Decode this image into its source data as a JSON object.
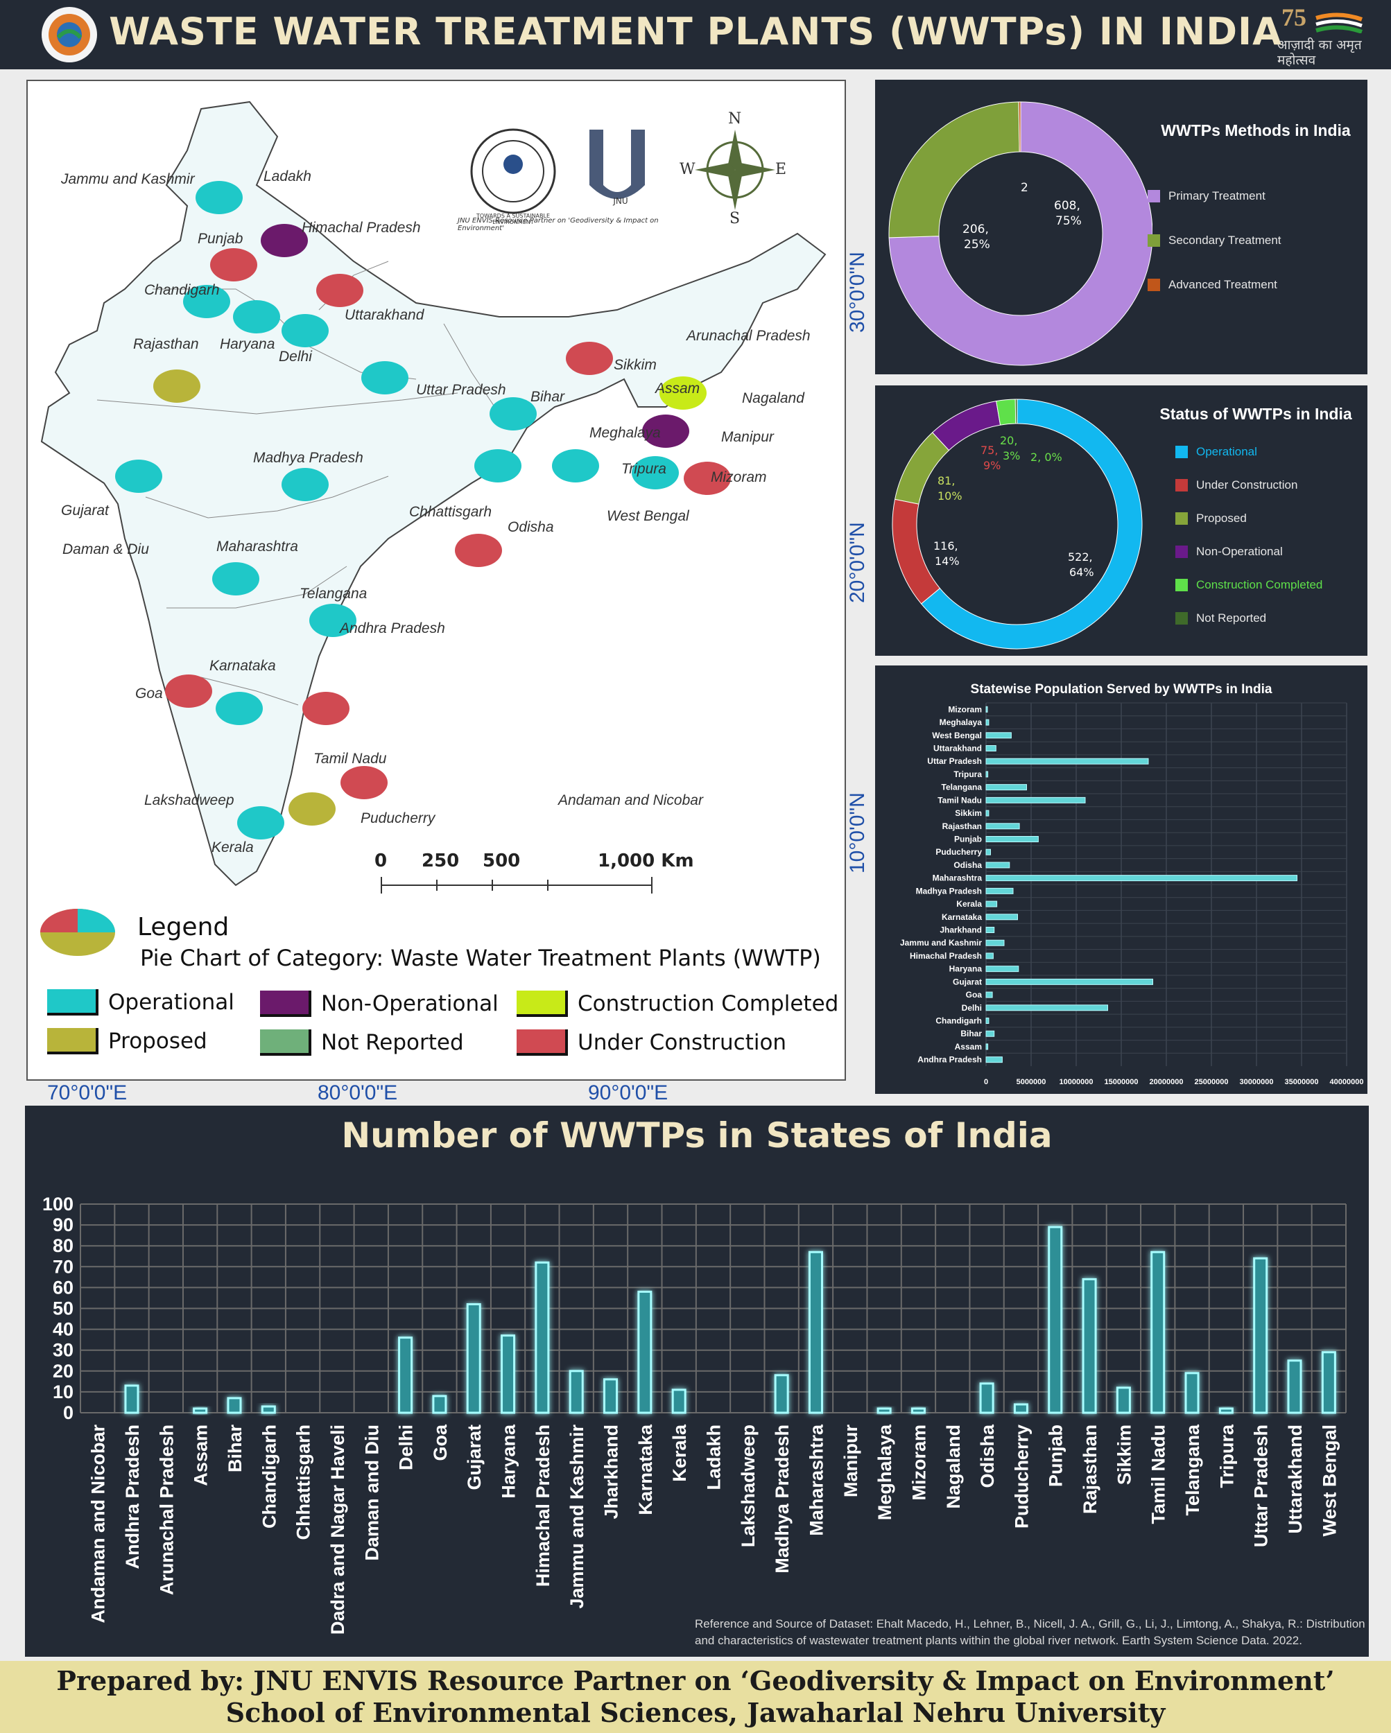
{
  "header": {
    "title": "WASTE WATER TREATMENT PLANTS (WWTPs) IN INDIA",
    "logo_right_text": "आज़ादी का अमृत महोत्सव",
    "logo_right_number": "75"
  },
  "map": {
    "org_text": "JNU ENVIS Resource Partner on 'Geodiversity & Impact on Environment'",
    "seal_text": "TOWARDS A SUSTAINABLE ENVIRONMENT",
    "jnu_text": "JNU",
    "compass": {
      "n": "N",
      "s": "S",
      "e": "E",
      "w": "W"
    },
    "scale": {
      "t0": "0",
      "t1": "250",
      "t2": "500",
      "t3": "1,000 Km"
    },
    "legend_title": "Legend",
    "legend_subtitle": "Pie Chart of Category: Waste Water Treatment Plants (WWTP)",
    "legend": [
      {
        "label": "Operational",
        "color": "#1fc8c8"
      },
      {
        "label": "Non-Operational",
        "color": "#6b1a6b"
      },
      {
        "label": "Construction Completed",
        "color": "#c8ea18"
      },
      {
        "label": "Proposed",
        "color": "#b8b43a"
      },
      {
        "label": "Not Reported",
        "color": "#6fb07a"
      },
      {
        "label": "Under Construction",
        "color": "#d04a52"
      }
    ],
    "labels": [
      "Jammu and Kashmir",
      "Ladakh",
      "Himachal Pradesh",
      "Punjab",
      "Chandigarh",
      "Uttarakhand",
      "Rajasthan",
      "Haryana",
      "Delhi",
      "Uttar Pradesh",
      "Bihar",
      "Sikkim",
      "Arunachal Pradesh",
      "Assam",
      "Nagaland",
      "Meghalaya",
      "Manipur",
      "Tripura",
      "Mizoram",
      "West Bengal",
      "Madhya Pradesh",
      "Gujarat",
      "Daman & Diu",
      "Chhattisgarh",
      "Odisha",
      "Maharashtra",
      "Telangana",
      "Andhra Pradesh",
      "Goa",
      "Karnataka",
      "Tamil Nadu",
      "Lakshadweep",
      "Puducherry",
      "Kerala",
      "Andaman and Nicobar"
    ],
    "lat_labels": [
      "30°0'0\"N",
      "20°0'0\"N",
      "10°0'0\"N"
    ],
    "lon_labels": [
      "70°0'0\"E",
      "80°0'0\"E",
      "90°0'0\"E"
    ]
  },
  "methods_chart": {
    "title": "WWTPs Methods in India",
    "labels": [
      "608,",
      "75%",
      "206,",
      "25%",
      "2"
    ],
    "legend": [
      {
        "label": "Primary Treatment",
        "color": "#b388dd"
      },
      {
        "label": "Secondary Treatment",
        "color": "#7fa03a"
      },
      {
        "label": "Advanced Treatment",
        "color": "#c0561a"
      }
    ]
  },
  "status_chart": {
    "title": "Status of WWTPs in India",
    "labels": [
      "522,",
      "64%",
      "116,",
      "14%",
      "81,",
      "10%",
      "75,",
      "9%",
      "20,",
      "3%",
      "2, 0%"
    ],
    "legend": [
      {
        "label": "Operational",
        "color": "#12b8f0"
      },
      {
        "label": "Under Construction",
        "color": "#c43a3a"
      },
      {
        "label": "Proposed",
        "color": "#86a53a"
      },
      {
        "label": "Non-Operational",
        "color": "#6a1a8a"
      },
      {
        "label": "Construction Completed",
        "color": "#5fe04a"
      },
      {
        "label": "Not Reported",
        "color": "#3f6a2a"
      }
    ]
  },
  "chart_data": [
    {
      "type": "pie",
      "title": "WWTPs Methods in India",
      "categories": [
        "Primary Treatment",
        "Secondary Treatment",
        "Advanced Treatment"
      ],
      "values": [
        608,
        206,
        2
      ],
      "percent": [
        75,
        25,
        0
      ]
    },
    {
      "type": "pie",
      "title": "Status of WWTPs in India",
      "categories": [
        "Operational",
        "Under Construction",
        "Proposed",
        "Non-Operational",
        "Construction Completed",
        "Not Reported"
      ],
      "values": [
        522,
        116,
        81,
        75,
        20,
        2
      ],
      "percent": [
        64,
        14,
        10,
        9,
        3,
        0
      ]
    },
    {
      "type": "bar",
      "orientation": "horizontal",
      "title": "Statewise Population Served by WWTPs in India",
      "categories": [
        "Mizoram",
        "Meghalaya",
        "West Bengal",
        "Uttarakhand",
        "Uttar Pradesh",
        "Tripura",
        "Telangana",
        "Tamil Nadu",
        "Sikkim",
        "Rajasthan",
        "Punjab",
        "Puducherry",
        "Odisha",
        "Maharashtra",
        "Madhya Pradesh",
        "Kerala",
        "Karnataka",
        "Jharkhand",
        "Jammu and Kashmir",
        "Himachal Pradesh",
        "Haryana",
        "Gujarat",
        "Goa",
        "Delhi",
        "Chandigarh",
        "Bihar",
        "Assam",
        "Andhra Pradesh"
      ],
      "values": [
        150000,
        300000,
        2800000,
        1100000,
        18000000,
        200000,
        4500000,
        11000000,
        300000,
        3700000,
        5800000,
        500000,
        2600000,
        34500000,
        3000000,
        1200000,
        3500000,
        900000,
        2000000,
        800000,
        3600000,
        18500000,
        700000,
        13500000,
        300000,
        900000,
        200000,
        1800000
      ],
      "xlim": [
        0,
        40000000
      ],
      "xticks": [
        "0",
        "5000000",
        "10000000",
        "15000000",
        "20000000",
        "25000000",
        "30000000",
        "35000000",
        "40000000"
      ]
    },
    {
      "type": "bar",
      "title": "Number of WWTPs in States of India",
      "categories": [
        "Andaman and Nicobar",
        "Andhra Pradesh",
        "Arunachal Pradesh",
        "Assam",
        "Bihar",
        "Chandigarh",
        "Chhattisgarh",
        "Dadra and Nagar Haveli",
        "Daman and Diu",
        "Delhi",
        "Goa",
        "Gujarat",
        "Haryana",
        "Himachal Pradesh",
        "Jammu and Kashmir",
        "Jharkhand",
        "Karnataka",
        "Kerala",
        "Ladakh",
        "Lakshadweep",
        "Madhya Pradesh",
        "Maharashtra",
        "Manipur",
        "Meghalaya",
        "Mizoram",
        "Nagaland",
        "Odisha",
        "Puducherry",
        "Punjab",
        "Rajasthan",
        "Sikkim",
        "Tamil Nadu",
        "Telangana",
        "Tripura",
        "Uttar Pradesh",
        "Uttarakhand",
        "West Bengal"
      ],
      "values": [
        0,
        13,
        0,
        2,
        7,
        3,
        0,
        0,
        0,
        36,
        8,
        52,
        37,
        72,
        20,
        16,
        58,
        11,
        0,
        0,
        18,
        77,
        0,
        2,
        2,
        0,
        14,
        4,
        89,
        64,
        12,
        77,
        19,
        2,
        74,
        25,
        29
      ],
      "ylim": [
        0,
        100
      ],
      "yticks": [
        "0",
        "10",
        "20",
        "30",
        "40",
        "50",
        "60",
        "70",
        "80",
        "90",
        "100"
      ]
    }
  ],
  "reference": {
    "line1": "Reference and Source of Dataset: Ehalt Macedo, H., Lehner, B., Nicell, J. A., Grill, G., Li, J., Limtong, A., Shakya, R.: Distribution",
    "line2": "and characteristics of wastewater treatment plants within the global river network. Earth System Science Data. 2022."
  },
  "footer": {
    "line1": "Prepared by: JNU ENVIS Resource Partner on ‘Geodiversity & Impact on Environment’",
    "line2": "School of Environmental Sciences, Jawaharlal Nehru University"
  }
}
